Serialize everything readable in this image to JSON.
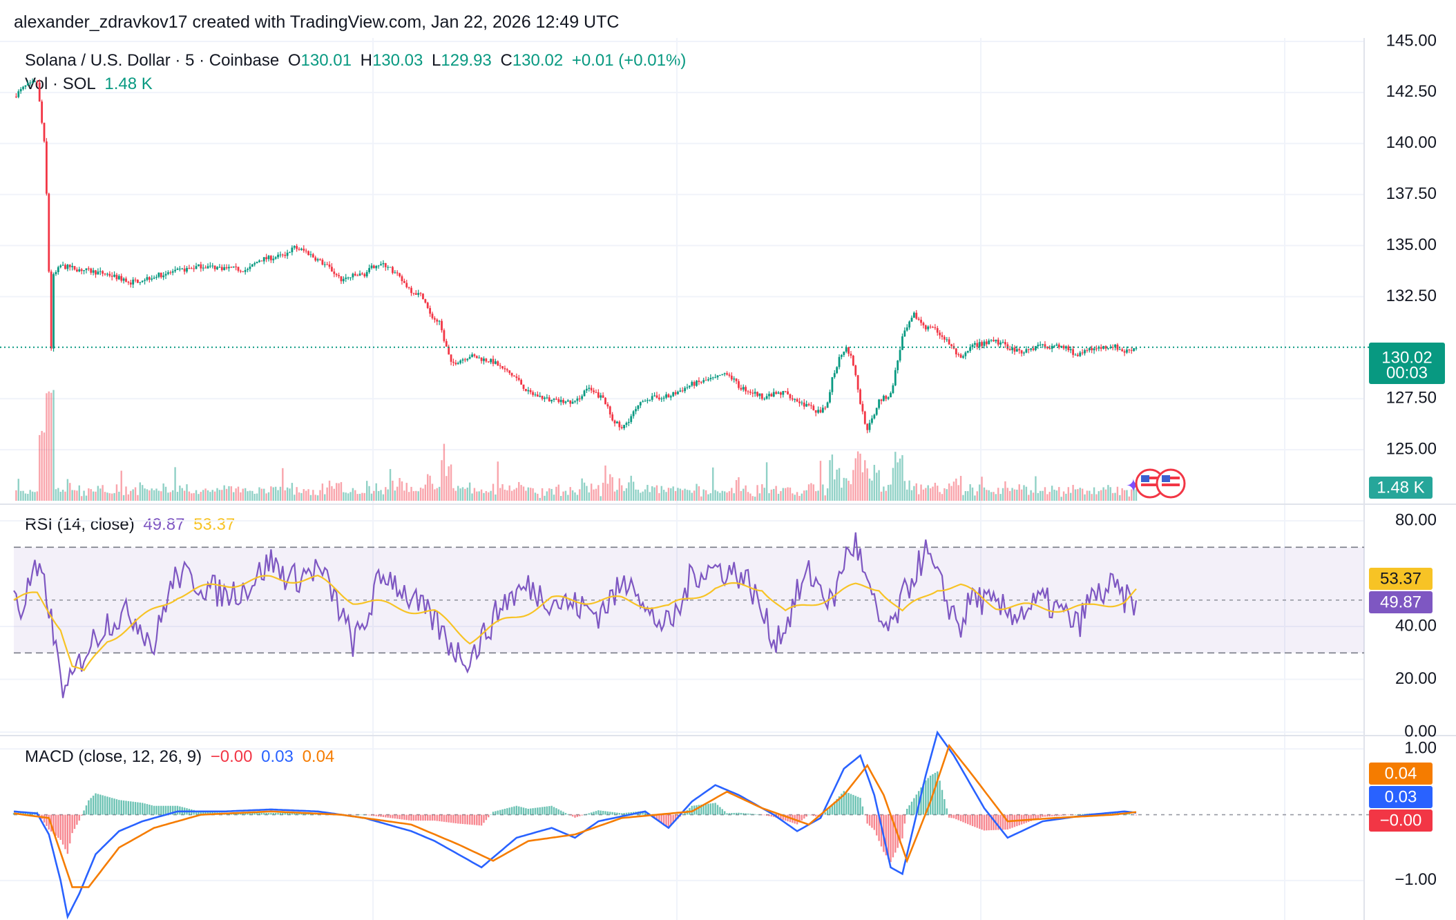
{
  "header": {
    "attribution": "alexander_zdravkov17 created with TradingView.com, Jan 22, 2026 12:49 UTC"
  },
  "price_legend": {
    "symbol": "Solana / U.S. Dollar · 5 · Coinbase",
    "o_label": "O",
    "o_value": "130.01",
    "h_label": "H",
    "h_value": "130.03",
    "l_label": "L",
    "l_value": "129.93",
    "c_label": "C",
    "c_value": "130.02",
    "change": "+0.01 (+0.01%)",
    "vol_label": "Vol · SOL",
    "vol_value": "1.48 K"
  },
  "rsi_legend": {
    "label": "RSI (14, close)",
    "rsi_value": "49.87",
    "ma_value": "53.37"
  },
  "macd_legend": {
    "label": "MACD (close, 12, 26, 9)",
    "hist_value": "−0.00",
    "macd_value": "0.03",
    "signal_value": "0.04"
  },
  "price_tags": {
    "last_price": "130.02",
    "countdown": "00:03",
    "volume": "1.48 K"
  },
  "rsi_tags": {
    "ma": "53.37",
    "rsi": "49.87"
  },
  "macd_tags": {
    "signal": "0.04",
    "macd": "0.03",
    "hist": "−0.00"
  },
  "colors": {
    "up": "#089981",
    "down": "#f23645",
    "rsi": "#7e57c2",
    "rsi_ma": "#f7c325",
    "macd": "#2962ff",
    "signal": "#f57c00",
    "grid": "#f0f3fa"
  },
  "chart_data": [
    {
      "type": "candlestick",
      "ylim": [
        122.5,
        145
      ],
      "y_ticks": [
        "145.00",
        "142.50",
        "140.00",
        "137.50",
        "135.00",
        "132.50",
        "127.50",
        "125.00"
      ],
      "last": 130.02,
      "path": [
        [
          0,
          142.3
        ],
        [
          5,
          142.8
        ],
        [
          10,
          143.0
        ],
        [
          11,
          142.0
        ],
        [
          13,
          140.0
        ],
        [
          14,
          137.5
        ],
        [
          16,
          130.0
        ],
        [
          17,
          133.5
        ],
        [
          20,
          134.0
        ],
        [
          40,
          133.6
        ],
        [
          50,
          133.2
        ],
        [
          60,
          133.5
        ],
        [
          80,
          134.0
        ],
        [
          100,
          133.8
        ],
        [
          105,
          134.3
        ],
        [
          115,
          134.5
        ],
        [
          120,
          134.9
        ],
        [
          125,
          134.7
        ],
        [
          135,
          133.9
        ],
        [
          140,
          133.3
        ],
        [
          145,
          133.5
        ],
        [
          150,
          133.6
        ],
        [
          155,
          134.1
        ],
        [
          160,
          134.0
        ],
        [
          165,
          133.4
        ],
        [
          170,
          132.8
        ],
        [
          175,
          132.5
        ],
        [
          178,
          131.6
        ],
        [
          182,
          131.2
        ],
        [
          185,
          130.0
        ],
        [
          187,
          129.2
        ],
        [
          195,
          129.6
        ],
        [
          205,
          129.3
        ],
        [
          210,
          128.9
        ],
        [
          215,
          128.5
        ],
        [
          220,
          127.8
        ],
        [
          225,
          127.6
        ],
        [
          230,
          127.4
        ],
        [
          240,
          127.3
        ],
        [
          245,
          128.0
        ],
        [
          252,
          127.5
        ],
        [
          256,
          126.5
        ],
        [
          260,
          126.0
        ],
        [
          265,
          126.8
        ],
        [
          270,
          127.5
        ],
        [
          280,
          127.6
        ],
        [
          290,
          128.2
        ],
        [
          300,
          128.5
        ],
        [
          305,
          128.8
        ],
        [
          310,
          128.1
        ],
        [
          320,
          127.6
        ],
        [
          330,
          127.8
        ],
        [
          335,
          127.4
        ],
        [
          340,
          127.1
        ],
        [
          345,
          126.8
        ],
        [
          348,
          127.2
        ],
        [
          350,
          128.5
        ],
        [
          353,
          129.5
        ],
        [
          356,
          130.1
        ],
        [
          359,
          129.2
        ],
        [
          362,
          127.3
        ],
        [
          365,
          125.9
        ],
        [
          367,
          126.5
        ],
        [
          370,
          127.4
        ],
        [
          375,
          127.7
        ],
        [
          380,
          130.5
        ],
        [
          385,
          131.6
        ],
        [
          390,
          131.0
        ],
        [
          395,
          130.8
        ],
        [
          400,
          130.2
        ],
        [
          405,
          129.4
        ],
        [
          410,
          130.1
        ],
        [
          420,
          130.3
        ],
        [
          430,
          129.8
        ],
        [
          440,
          130.1
        ],
        [
          450,
          130.0
        ],
        [
          455,
          129.6
        ],
        [
          460,
          129.9
        ],
        [
          470,
          130.1
        ],
        [
          475,
          129.8
        ],
        [
          480,
          130.02
        ]
      ],
      "volume_last": "1.48 K"
    },
    {
      "type": "line",
      "name": "RSI (14, close)",
      "ylim": [
        0,
        85
      ],
      "y_ticks": [
        "80.00",
        "40.00",
        "20.00",
        "0.00"
      ],
      "bands": [
        30,
        50,
        70
      ],
      "path": [
        [
          0,
          55
        ],
        [
          3,
          45
        ],
        [
          8,
          60
        ],
        [
          12,
          58
        ],
        [
          15,
          48
        ],
        [
          18,
          30
        ],
        [
          22,
          14
        ],
        [
          25,
          20
        ],
        [
          30,
          30
        ],
        [
          40,
          42
        ],
        [
          50,
          45
        ],
        [
          55,
          40
        ],
        [
          60,
          32
        ],
        [
          65,
          50
        ],
        [
          70,
          60
        ],
        [
          80,
          56
        ],
        [
          90,
          52
        ],
        [
          100,
          55
        ],
        [
          110,
          65
        ],
        [
          115,
          60
        ],
        [
          120,
          58
        ],
        [
          130,
          62
        ],
        [
          135,
          55
        ],
        [
          140,
          45
        ],
        [
          145,
          34
        ],
        [
          150,
          40
        ],
        [
          155,
          55
        ],
        [
          160,
          60
        ],
        [
          170,
          50
        ],
        [
          180,
          42
        ],
        [
          185,
          35
        ],
        [
          190,
          30
        ],
        [
          195,
          28
        ],
        [
          200,
          35
        ],
        [
          210,
          50
        ],
        [
          220,
          55
        ],
        [
          230,
          50
        ],
        [
          240,
          48
        ],
        [
          250,
          45
        ],
        [
          260,
          55
        ],
        [
          265,
          60
        ],
        [
          270,
          45
        ],
        [
          280,
          40
        ],
        [
          285,
          47
        ],
        [
          290,
          60
        ],
        [
          300,
          62
        ],
        [
          310,
          60
        ],
        [
          315,
          56
        ],
        [
          320,
          45
        ],
        [
          325,
          35
        ],
        [
          330,
          40
        ],
        [
          335,
          52
        ],
        [
          340,
          60
        ],
        [
          345,
          55
        ],
        [
          350,
          48
        ],
        [
          355,
          65
        ],
        [
          360,
          72
        ],
        [
          365,
          55
        ],
        [
          370,
          42
        ],
        [
          375,
          38
        ],
        [
          380,
          50
        ],
        [
          385,
          60
        ],
        [
          390,
          68
        ],
        [
          395,
          58
        ],
        [
          400,
          48
        ],
        [
          405,
          40
        ],
        [
          410,
          52
        ],
        [
          420,
          47
        ],
        [
          430,
          45
        ],
        [
          440,
          50
        ],
        [
          450,
          44
        ],
        [
          455,
          40
        ],
        [
          460,
          50
        ],
        [
          470,
          55
        ],
        [
          475,
          50
        ],
        [
          480,
          49.87
        ]
      ],
      "ma_path": [
        [
          0,
          50
        ],
        [
          10,
          52
        ],
        [
          20,
          40
        ],
        [
          25,
          25
        ],
        [
          30,
          22
        ],
        [
          40,
          35
        ],
        [
          55,
          43
        ],
        [
          70,
          52
        ],
        [
          90,
          56
        ],
        [
          110,
          58
        ],
        [
          130,
          58
        ],
        [
          145,
          50
        ],
        [
          160,
          48
        ],
        [
          180,
          45
        ],
        [
          195,
          35
        ],
        [
          210,
          42
        ],
        [
          230,
          50
        ],
        [
          260,
          50
        ],
        [
          280,
          47
        ],
        [
          300,
          55
        ],
        [
          320,
          55
        ],
        [
          330,
          45
        ],
        [
          345,
          50
        ],
        [
          360,
          55
        ],
        [
          370,
          55
        ],
        [
          380,
          45
        ],
        [
          395,
          55
        ],
        [
          405,
          55
        ],
        [
          420,
          48
        ],
        [
          440,
          47
        ],
        [
          460,
          47
        ],
        [
          475,
          50
        ],
        [
          480,
          53.37
        ]
      ]
    },
    {
      "type": "line",
      "name": "MACD (close, 12, 26, 9)",
      "ylim": [
        -1.6,
        1.15
      ],
      "y_ticks": [
        "1.00",
        "−1.00"
      ],
      "zero": 0,
      "macd_path": [
        [
          0,
          0.05
        ],
        [
          10,
          0.02
        ],
        [
          15,
          -0.3
        ],
        [
          20,
          -1.0
        ],
        [
          23,
          -1.55
        ],
        [
          28,
          -1.2
        ],
        [
          35,
          -0.6
        ],
        [
          45,
          -0.25
        ],
        [
          55,
          -0.1
        ],
        [
          70,
          0.05
        ],
        [
          90,
          0.05
        ],
        [
          110,
          0.08
        ],
        [
          130,
          0.05
        ],
        [
          150,
          -0.05
        ],
        [
          170,
          -0.25
        ],
        [
          180,
          -0.4
        ],
        [
          190,
          -0.6
        ],
        [
          200,
          -0.8
        ],
        [
          205,
          -0.65
        ],
        [
          215,
          -0.35
        ],
        [
          230,
          -0.2
        ],
        [
          240,
          -0.35
        ],
        [
          250,
          -0.1
        ],
        [
          270,
          0.05
        ],
        [
          280,
          -0.2
        ],
        [
          290,
          0.2
        ],
        [
          300,
          0.45
        ],
        [
          310,
          0.3
        ],
        [
          325,
          0.0
        ],
        [
          335,
          -0.25
        ],
        [
          345,
          -0.05
        ],
        [
          355,
          0.7
        ],
        [
          362,
          0.9
        ],
        [
          368,
          0.3
        ],
        [
          375,
          -0.8
        ],
        [
          380,
          -0.9
        ],
        [
          390,
          0.6
        ],
        [
          395,
          1.25
        ],
        [
          402,
          0.9
        ],
        [
          415,
          0.1
        ],
        [
          425,
          -0.35
        ],
        [
          440,
          -0.1
        ],
        [
          460,
          0.0
        ],
        [
          475,
          0.05
        ],
        [
          480,
          0.03
        ]
      ],
      "signal_path": [
        [
          0,
          0.02
        ],
        [
          15,
          -0.05
        ],
        [
          25,
          -1.1
        ],
        [
          32,
          -1.1
        ],
        [
          45,
          -0.5
        ],
        [
          60,
          -0.2
        ],
        [
          80,
          0.0
        ],
        [
          110,
          0.05
        ],
        [
          140,
          0.0
        ],
        [
          170,
          -0.15
        ],
        [
          190,
          -0.45
        ],
        [
          205,
          -0.7
        ],
        [
          220,
          -0.4
        ],
        [
          240,
          -0.3
        ],
        [
          260,
          -0.05
        ],
        [
          290,
          0.05
        ],
        [
          305,
          0.35
        ],
        [
          320,
          0.1
        ],
        [
          340,
          -0.15
        ],
        [
          355,
          0.3
        ],
        [
          365,
          0.75
        ],
        [
          372,
          0.3
        ],
        [
          382,
          -0.7
        ],
        [
          392,
          0.2
        ],
        [
          400,
          1.05
        ],
        [
          410,
          0.6
        ],
        [
          425,
          -0.1
        ],
        [
          445,
          -0.05
        ],
        [
          470,
          0.0
        ],
        [
          480,
          0.04
        ]
      ]
    }
  ]
}
